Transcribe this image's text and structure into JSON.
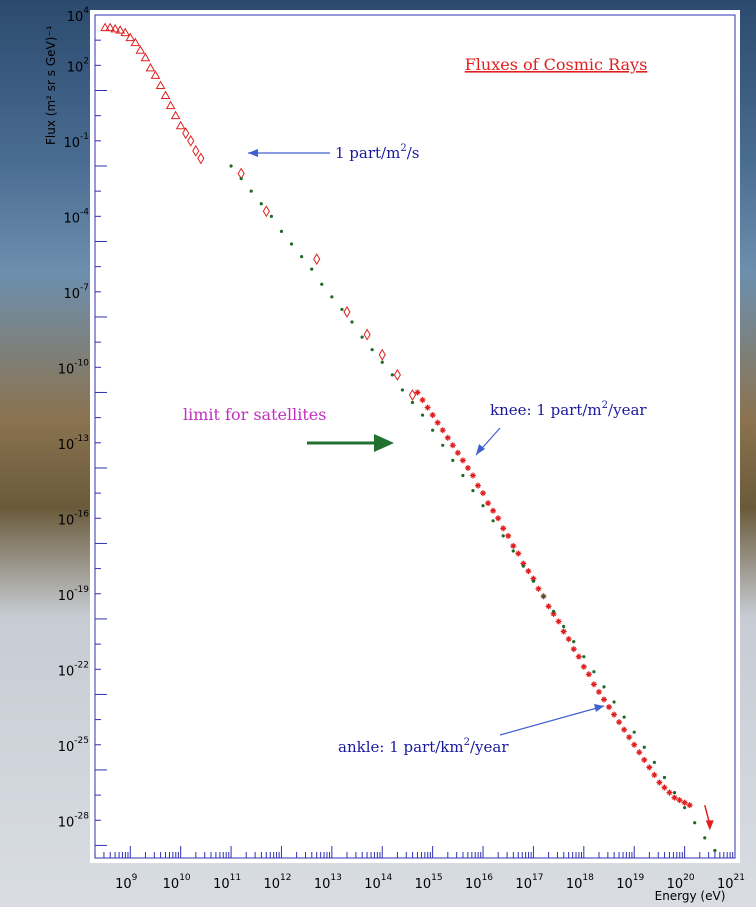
{
  "chart_data": {
    "type": "scatter",
    "title": "Fluxes of Cosmic Rays",
    "xlabel": "Energy (eV)",
    "ylabel": "Flux (m² sr s GeV)⁻¹",
    "x_scale": "log",
    "y_scale": "log",
    "xlim_exp": [
      8.3,
      21
    ],
    "ylim_exp": [
      -29.5,
      4
    ],
    "x_tick_exponents": [
      "9",
      "10",
      "11",
      "12",
      "13",
      "14",
      "15",
      "16",
      "17",
      "18",
      "19",
      "20",
      "21"
    ],
    "y_tick_exponents": [
      "4",
      "2",
      "-1",
      "-4",
      "-7",
      "-10",
      "-13",
      "-16",
      "-19",
      "-22",
      "-25",
      "-28"
    ],
    "tick_base": "10",
    "annotations": {
      "one_part": {
        "text": "1 part/m",
        "sup": "2",
        "tail": "/s",
        "color": "#1a1a9e"
      },
      "knee": {
        "text": "knee: 1 part/m",
        "sup": "2",
        "tail": "/year",
        "color": "#1a1a9e"
      },
      "ankle": {
        "text": "ankle: 1 part/km",
        "sup": "2",
        "tail": "/year",
        "color": "#1a1a9e"
      },
      "satellites": {
        "text": "limit for satellites",
        "color": "#c030c0",
        "arrow_color": "#207030"
      }
    },
    "series": [
      {
        "marker": "triangle",
        "color": "#e02020",
        "points": [
          [
            8.5,
            3.5
          ],
          [
            8.6,
            3.5
          ],
          [
            8.7,
            3.45
          ],
          [
            8.8,
            3.4
          ],
          [
            8.9,
            3.3
          ],
          [
            9.0,
            3.1
          ],
          [
            9.1,
            2.9
          ],
          [
            9.2,
            2.6
          ],
          [
            9.3,
            2.3
          ],
          [
            9.4,
            1.9
          ],
          [
            9.5,
            1.6
          ],
          [
            9.6,
            1.2
          ],
          [
            9.7,
            0.8
          ],
          [
            9.8,
            0.4
          ],
          [
            9.9,
            0.0
          ],
          [
            10.0,
            -0.4
          ]
        ]
      },
      {
        "marker": "diamond",
        "color": "#e02020",
        "points": [
          [
            10.1,
            -0.7
          ],
          [
            10.2,
            -1.0
          ],
          [
            10.3,
            -1.4
          ],
          [
            10.4,
            -1.7
          ],
          [
            11.2,
            -2.3
          ],
          [
            11.7,
            -3.8
          ],
          [
            12.7,
            -5.7
          ],
          [
            13.3,
            -7.8
          ],
          [
            13.7,
            -8.7
          ],
          [
            14.0,
            -9.5
          ],
          [
            14.3,
            -10.3
          ],
          [
            14.6,
            -11.1
          ]
        ]
      },
      {
        "marker": "star",
        "color": "#e02020",
        "points": [
          [
            14.7,
            -11.0
          ],
          [
            14.8,
            -11.3
          ],
          [
            14.9,
            -11.6
          ],
          [
            15.0,
            -11.9
          ],
          [
            15.1,
            -12.2
          ],
          [
            15.2,
            -12.5
          ],
          [
            15.3,
            -12.8
          ],
          [
            15.4,
            -13.1
          ],
          [
            15.5,
            -13.4
          ],
          [
            15.6,
            -13.7
          ],
          [
            15.7,
            -14.0
          ],
          [
            15.8,
            -14.3
          ],
          [
            15.9,
            -14.7
          ],
          [
            16.0,
            -15.0
          ],
          [
            16.1,
            -15.4
          ],
          [
            16.2,
            -15.7
          ],
          [
            16.3,
            -16.0
          ],
          [
            16.4,
            -16.4
          ],
          [
            16.5,
            -16.7
          ],
          [
            16.6,
            -17.1
          ],
          [
            16.7,
            -17.4
          ],
          [
            16.8,
            -17.8
          ],
          [
            16.9,
            -18.1
          ],
          [
            17.0,
            -18.4
          ],
          [
            17.1,
            -18.8
          ],
          [
            17.2,
            -19.1
          ],
          [
            17.3,
            -19.5
          ],
          [
            17.4,
            -19.8
          ],
          [
            17.5,
            -20.1
          ],
          [
            17.6,
            -20.5
          ],
          [
            17.7,
            -20.8
          ],
          [
            17.8,
            -21.2
          ],
          [
            17.9,
            -21.5
          ],
          [
            18.0,
            -21.9
          ],
          [
            18.1,
            -22.2
          ],
          [
            18.2,
            -22.6
          ],
          [
            18.3,
            -22.9
          ],
          [
            18.4,
            -23.2
          ],
          [
            18.5,
            -23.5
          ],
          [
            18.6,
            -23.8
          ],
          [
            18.7,
            -24.1
          ],
          [
            18.8,
            -24.4
          ],
          [
            18.9,
            -24.7
          ],
          [
            19.0,
            -25.0
          ],
          [
            19.1,
            -25.3
          ],
          [
            19.2,
            -25.6
          ],
          [
            19.3,
            -25.9
          ],
          [
            19.4,
            -26.2
          ],
          [
            19.5,
            -26.5
          ],
          [
            19.6,
            -26.7
          ],
          [
            19.7,
            -26.9
          ],
          [
            19.8,
            -27.1
          ],
          [
            19.9,
            -27.2
          ],
          [
            20.0,
            -27.3
          ],
          [
            20.1,
            -27.4
          ]
        ]
      },
      {
        "marker": "arrow-down",
        "color": "#e02020",
        "points": [
          [
            20.4,
            -27.4
          ],
          [
            20.5,
            -28.4
          ]
        ]
      },
      {
        "marker": "dot",
        "color": "#1e6a2a",
        "points": [
          [
            11.0,
            -2.0
          ],
          [
            11.2,
            -2.5
          ],
          [
            11.4,
            -3.0
          ],
          [
            11.6,
            -3.5
          ],
          [
            11.8,
            -4.0
          ],
          [
            12.0,
            -4.6
          ],
          [
            12.2,
            -5.1
          ],
          [
            12.4,
            -5.6
          ],
          [
            12.6,
            -6.1
          ],
          [
            12.8,
            -6.7
          ],
          [
            13.0,
            -7.2
          ],
          [
            13.2,
            -7.7
          ],
          [
            13.4,
            -8.2
          ],
          [
            13.6,
            -8.8
          ],
          [
            13.8,
            -9.3
          ],
          [
            14.0,
            -9.8
          ],
          [
            14.2,
            -10.3
          ],
          [
            14.4,
            -10.9
          ],
          [
            14.6,
            -11.4
          ],
          [
            14.8,
            -11.9
          ],
          [
            15.0,
            -12.5
          ],
          [
            15.2,
            -13.1
          ],
          [
            15.4,
            -13.7
          ],
          [
            15.6,
            -14.3
          ],
          [
            15.8,
            -14.9
          ],
          [
            16.0,
            -15.5
          ],
          [
            16.2,
            -16.1
          ],
          [
            16.4,
            -16.7
          ],
          [
            16.6,
            -17.3
          ],
          [
            16.8,
            -17.9
          ],
          [
            17.0,
            -18.5
          ],
          [
            17.2,
            -19.1
          ],
          [
            17.4,
            -19.7
          ],
          [
            17.6,
            -20.3
          ],
          [
            17.8,
            -20.9
          ],
          [
            18.0,
            -21.5
          ],
          [
            18.2,
            -22.1
          ],
          [
            18.4,
            -22.7
          ],
          [
            18.6,
            -23.3
          ],
          [
            18.8,
            -23.9
          ],
          [
            19.0,
            -24.5
          ],
          [
            19.2,
            -25.1
          ],
          [
            19.4,
            -25.7
          ],
          [
            19.6,
            -26.3
          ],
          [
            19.8,
            -26.9
          ],
          [
            20.0,
            -27.5
          ],
          [
            20.2,
            -28.1
          ],
          [
            20.4,
            -28.7
          ],
          [
            20.6,
            -29.2
          ]
        ]
      }
    ]
  }
}
